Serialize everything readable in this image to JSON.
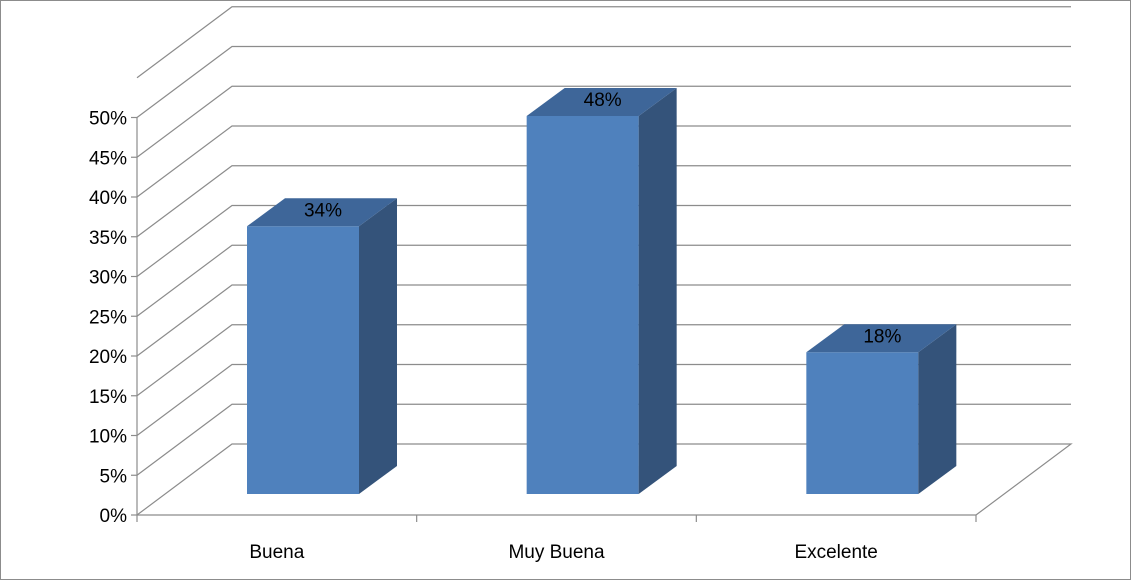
{
  "chart_data": {
    "type": "bar",
    "three_d": true,
    "categories": [
      "Buena",
      "Muy Buena",
      "Excelente"
    ],
    "values": [
      34,
      48,
      18
    ],
    "data_labels": [
      "34%",
      "48%",
      "18%"
    ],
    "yticks": [
      "0%",
      "5%",
      "10%",
      "15%",
      "20%",
      "25%",
      "30%",
      "35%",
      "40%",
      "45%",
      "50%"
    ],
    "ylim": [
      0,
      55
    ],
    "grid": true,
    "legend": "none",
    "colors": {
      "bar_front": "#4f81bd",
      "bar_side": "#34537a",
      "bar_top": "#3e6699",
      "grid": "#8c8c8c"
    }
  }
}
